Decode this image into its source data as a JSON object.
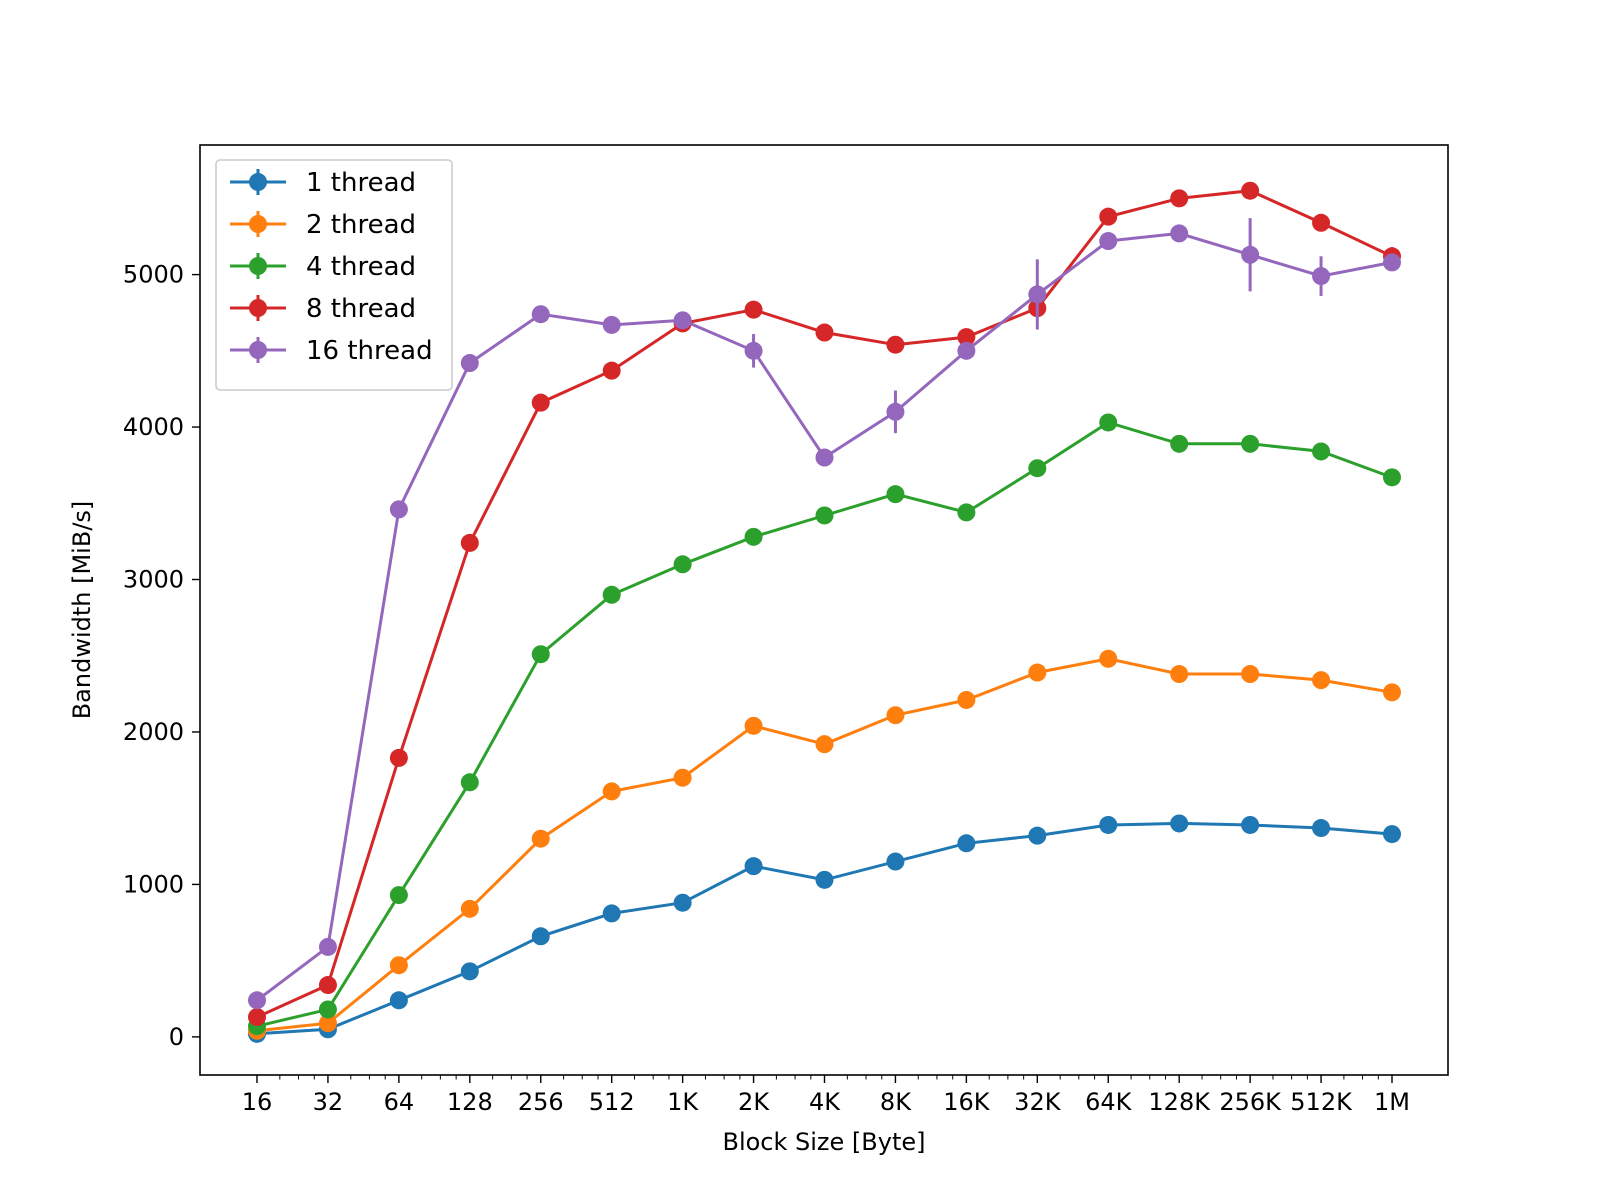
{
  "chart_data": {
    "type": "line",
    "xlabel": "Block Size [Byte]",
    "ylabel": "Bandwidth [MiB/s]",
    "x_scale": "log2",
    "categories": [
      "16",
      "32",
      "64",
      "128",
      "256",
      "512",
      "1K",
      "2K",
      "4K",
      "8K",
      "16K",
      "32K",
      "64K",
      "128K",
      "256K",
      "512K",
      "1M"
    ],
    "x": [
      16,
      32,
      64,
      128,
      256,
      512,
      1024,
      2048,
      4096,
      8192,
      16384,
      32768,
      65536,
      131072,
      262144,
      524288,
      1048576
    ],
    "ylim": [
      -250,
      5850
    ],
    "yticks": [
      0,
      1000,
      2000,
      3000,
      4000,
      5000
    ],
    "grid": false,
    "legend_position": "top-left",
    "series": [
      {
        "name": "1 thread",
        "color": "#1f77b4",
        "values": [
          20,
          50,
          240,
          430,
          660,
          810,
          880,
          1120,
          1030,
          1150,
          1270,
          1320,
          1390,
          1400,
          1390,
          1370,
          1330
        ],
        "errors": [
          0,
          0,
          0,
          0,
          0,
          0,
          0,
          0,
          0,
          0,
          0,
          0,
          0,
          0,
          0,
          0,
          0
        ]
      },
      {
        "name": "2 thread",
        "color": "#ff7f0e",
        "values": [
          40,
          90,
          470,
          840,
          1300,
          1610,
          1700,
          2040,
          1920,
          2110,
          2210,
          2390,
          2480,
          2380,
          2380,
          2340,
          2260
        ],
        "errors": [
          0,
          0,
          0,
          0,
          0,
          0,
          0,
          0,
          0,
          0,
          0,
          0,
          0,
          0,
          0,
          0,
          0
        ]
      },
      {
        "name": "4 thread",
        "color": "#2ca02c",
        "values": [
          70,
          180,
          930,
          1670,
          2510,
          2900,
          3100,
          3280,
          3420,
          3560,
          3440,
          3730,
          4030,
          3890,
          3890,
          3840,
          3670
        ],
        "errors": [
          0,
          0,
          0,
          0,
          0,
          0,
          0,
          0,
          0,
          0,
          0,
          0,
          0,
          0,
          0,
          0,
          0
        ]
      },
      {
        "name": "8 thread",
        "color": "#d62728",
        "values": [
          130,
          340,
          1830,
          3240,
          4160,
          4370,
          4680,
          4770,
          4620,
          4540,
          4590,
          4780,
          5380,
          5500,
          5550,
          5340,
          5120
        ],
        "errors": [
          0,
          0,
          0,
          0,
          0,
          0,
          0,
          0,
          0,
          0,
          0,
          0,
          0,
          0,
          0,
          0,
          60
        ]
      },
      {
        "name": "16 thread",
        "color": "#9467bd",
        "values": [
          240,
          590,
          3460,
          4420,
          4740,
          4670,
          4700,
          4500,
          3800,
          4100,
          4500,
          4870,
          5220,
          5270,
          5130,
          4990,
          5080
        ],
        "errors": [
          0,
          0,
          0,
          0,
          0,
          0,
          0,
          110,
          0,
          140,
          0,
          230,
          0,
          0,
          240,
          130,
          0
        ]
      }
    ]
  }
}
